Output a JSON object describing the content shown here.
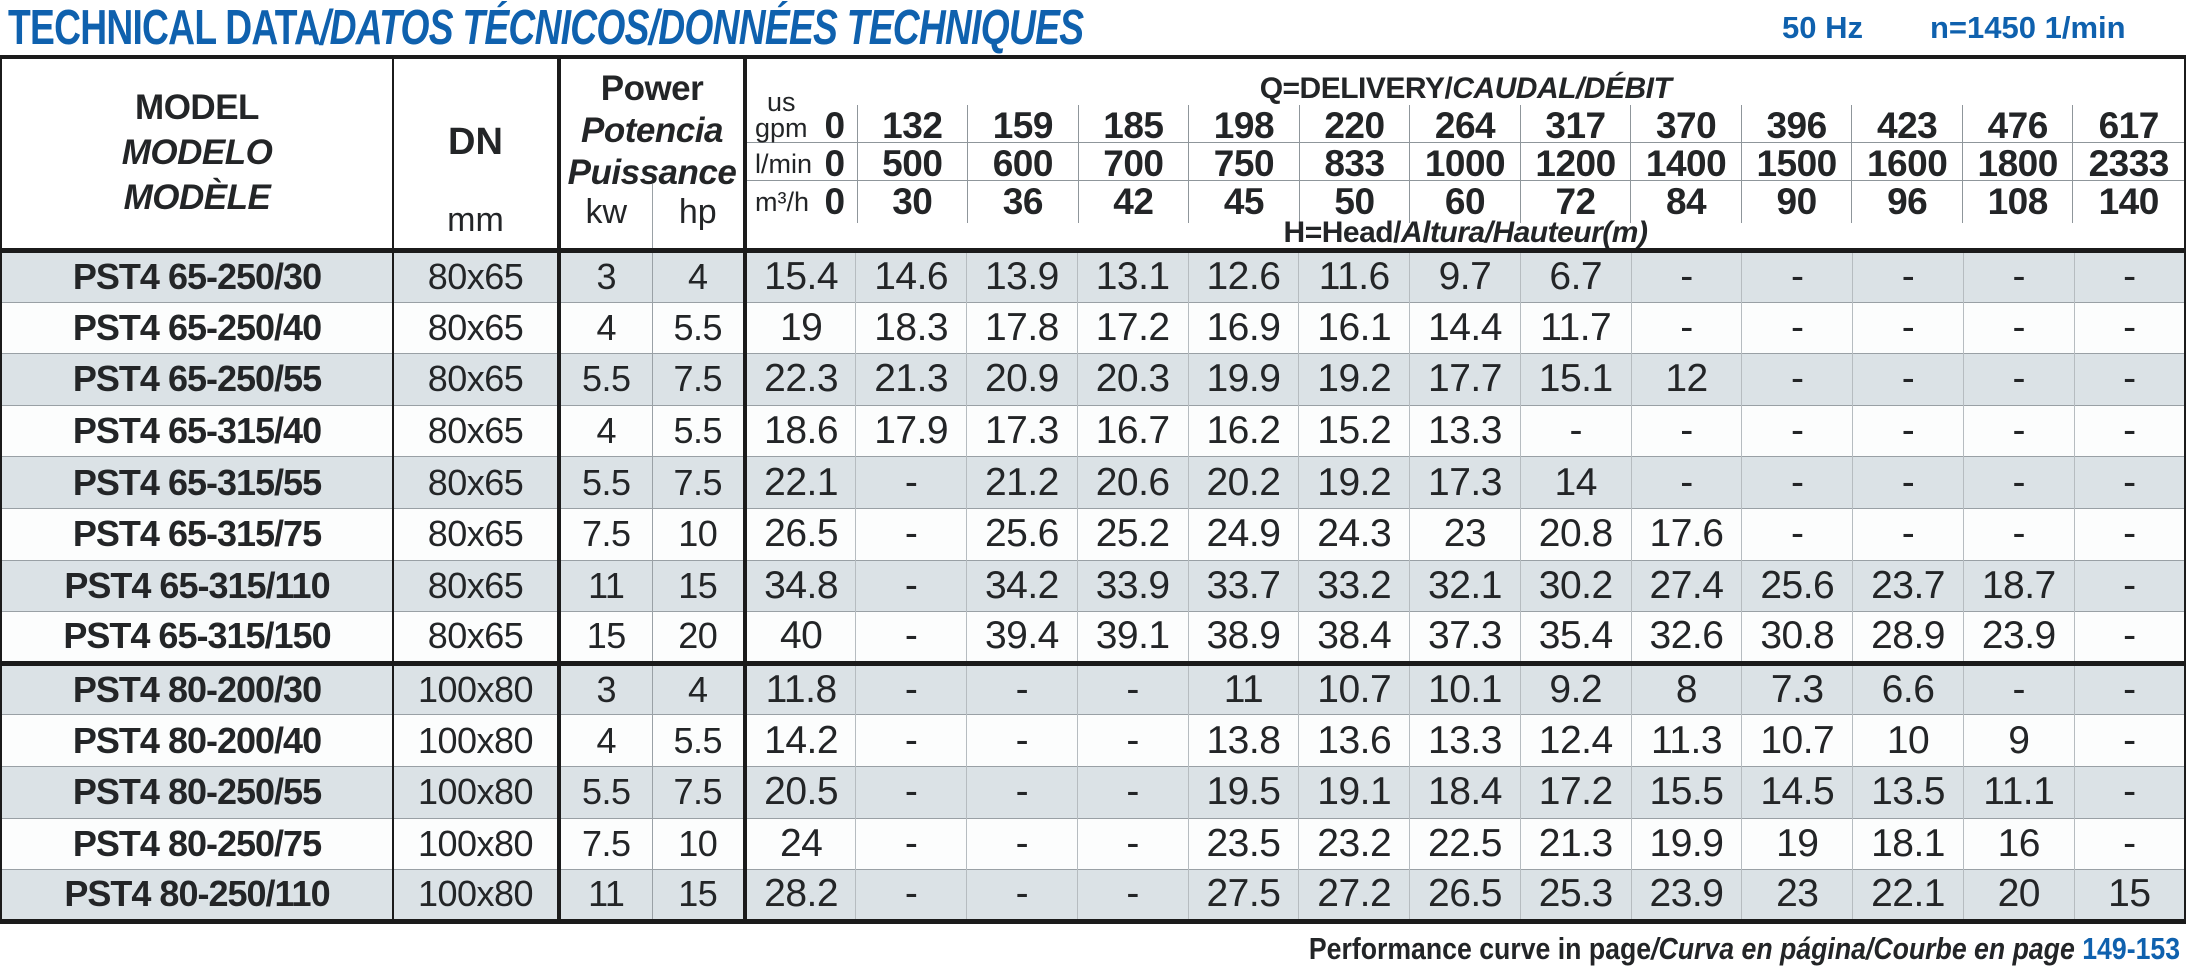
{
  "page": {
    "title": {
      "plain": "TECHNICAL DATA",
      "italic": "/DATOS TÉCNICOS/DONNÉES TECHNIQUES"
    },
    "frequency": "50 Hz",
    "speed": "n=1450 1/min"
  },
  "colors": {
    "accent_blue": "#0f61ae",
    "row_band": "#dbe2e6",
    "line_black": "#1b1b1b"
  },
  "table": {
    "model_header": {
      "en": "MODEL",
      "es": "MODELO",
      "fr": "MODÈLE"
    },
    "dn_header": {
      "label": "DN",
      "unit": "mm"
    },
    "power_header": {
      "en": "Power",
      "es": "Potencia",
      "fr": "Puissance",
      "kw": "kw",
      "hp": "hp"
    },
    "q_header": {
      "title_plain": "Q=DELIVERY/",
      "title_italic": "CAUDAL/DÉBIT",
      "head_plain": "H=Head/",
      "head_italic": "Altura/Hauteur",
      "head_unit": "(m)",
      "rows": [
        {
          "label_top": "us",
          "label": "gpm",
          "values": [
            "0",
            "132",
            "159",
            "185",
            "198",
            "220",
            "264",
            "317",
            "370",
            "396",
            "423",
            "476",
            "617"
          ]
        },
        {
          "label": "l/min",
          "values": [
            "0",
            "500",
            "600",
            "700",
            "750",
            "833",
            "1000",
            "1200",
            "1400",
            "1500",
            "1600",
            "1800",
            "2333"
          ]
        },
        {
          "label": "m³/h",
          "values": [
            "0",
            "30",
            "36",
            "42",
            "45",
            "50",
            "60",
            "72",
            "84",
            "90",
            "96",
            "108",
            "140"
          ]
        }
      ]
    },
    "group_breaks": [
      8
    ],
    "rows": [
      {
        "model": "PST4 65-250/30",
        "dn": "80x65",
        "kw": "3",
        "hp": "4",
        "values": [
          "15.4",
          "14.6",
          "13.9",
          "13.1",
          "12.6",
          "11.6",
          "9.7",
          "6.7",
          "-",
          "-",
          "-",
          "-",
          "-"
        ]
      },
      {
        "model": "PST4 65-250/40",
        "dn": "80x65",
        "kw": "4",
        "hp": "5.5",
        "values": [
          "19",
          "18.3",
          "17.8",
          "17.2",
          "16.9",
          "16.1",
          "14.4",
          "11.7",
          "-",
          "-",
          "-",
          "-",
          "-"
        ]
      },
      {
        "model": "PST4 65-250/55",
        "dn": "80x65",
        "kw": "5.5",
        "hp": "7.5",
        "values": [
          "22.3",
          "21.3",
          "20.9",
          "20.3",
          "19.9",
          "19.2",
          "17.7",
          "15.1",
          "12",
          "-",
          "-",
          "-",
          "-"
        ]
      },
      {
        "model": "PST4 65-315/40",
        "dn": "80x65",
        "kw": "4",
        "hp": "5.5",
        "values": [
          "18.6",
          "17.9",
          "17.3",
          "16.7",
          "16.2",
          "15.2",
          "13.3",
          "-",
          "-",
          "-",
          "-",
          "-",
          "-"
        ]
      },
      {
        "model": "PST4 65-315/55",
        "dn": "80x65",
        "kw": "5.5",
        "hp": "7.5",
        "values": [
          "22.1",
          "-",
          "21.2",
          "20.6",
          "20.2",
          "19.2",
          "17.3",
          "14",
          "-",
          "-",
          "-",
          "-",
          "-"
        ]
      },
      {
        "model": "PST4 65-315/75",
        "dn": "80x65",
        "kw": "7.5",
        "hp": "10",
        "values": [
          "26.5",
          "-",
          "25.6",
          "25.2",
          "24.9",
          "24.3",
          "23",
          "20.8",
          "17.6",
          "-",
          "-",
          "-",
          "-"
        ]
      },
      {
        "model": "PST4 65-315/110",
        "dn": "80x65",
        "kw": "11",
        "hp": "15",
        "values": [
          "34.8",
          "-",
          "34.2",
          "33.9",
          "33.7",
          "33.2",
          "32.1",
          "30.2",
          "27.4",
          "25.6",
          "23.7",
          "18.7",
          "-"
        ]
      },
      {
        "model": "PST4 65-315/150",
        "dn": "80x65",
        "kw": "15",
        "hp": "20",
        "values": [
          "40",
          "-",
          "39.4",
          "39.1",
          "38.9",
          "38.4",
          "37.3",
          "35.4",
          "32.6",
          "30.8",
          "28.9",
          "23.9",
          "-"
        ]
      },
      {
        "model": "PST4 80-200/30",
        "dn": "100x80",
        "kw": "3",
        "hp": "4",
        "values": [
          "11.8",
          "-",
          "-",
          "-",
          "11",
          "10.7",
          "10.1",
          "9.2",
          "8",
          "7.3",
          "6.6",
          "-",
          "-"
        ]
      },
      {
        "model": "PST4 80-200/40",
        "dn": "100x80",
        "kw": "4",
        "hp": "5.5",
        "values": [
          "14.2",
          "-",
          "-",
          "-",
          "13.8",
          "13.6",
          "13.3",
          "12.4",
          "11.3",
          "10.7",
          "10",
          "9",
          "-"
        ]
      },
      {
        "model": "PST4 80-250/55",
        "dn": "100x80",
        "kw": "5.5",
        "hp": "7.5",
        "values": [
          "20.5",
          "-",
          "-",
          "-",
          "19.5",
          "19.1",
          "18.4",
          "17.2",
          "15.5",
          "14.5",
          "13.5",
          "11.1",
          "-"
        ]
      },
      {
        "model": "PST4 80-250/75",
        "dn": "100x80",
        "kw": "7.5",
        "hp": "10",
        "values": [
          "24",
          "-",
          "-",
          "-",
          "23.5",
          "23.2",
          "22.5",
          "21.3",
          "19.9",
          "19",
          "18.1",
          "16",
          "-"
        ]
      },
      {
        "model": "PST4 80-250/110",
        "dn": "100x80",
        "kw": "11",
        "hp": "15",
        "values": [
          "28.2",
          "-",
          "-",
          "-",
          "27.5",
          "27.2",
          "26.5",
          "25.3",
          "23.9",
          "23",
          "22.1",
          "20",
          "15"
        ]
      }
    ]
  },
  "footer": {
    "plain": "Performance curve in page",
    "italic": "/Curva en página/Courbe en page ",
    "pages": "149-153"
  }
}
